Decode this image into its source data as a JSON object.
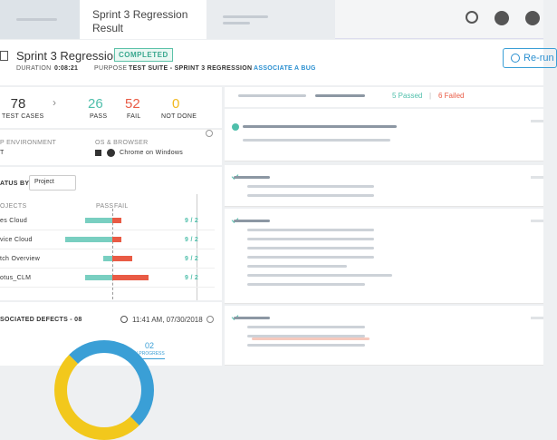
{
  "tab": {
    "title": "Sprint 3 Regression Result"
  },
  "header": {
    "title": "Sprint 3 Regression",
    "status": "COMPLETED",
    "duration_label": "DURATION",
    "duration": "0:08:21",
    "purpose_label": "PURPOSE",
    "purpose": "TEST SUITE - SPRINT 3 REGRESSION",
    "associate": "ASSOCIATE A BUG",
    "button": "Re-run"
  },
  "stats": [
    {
      "value": "78",
      "label": "TEST CASES"
    },
    {
      "value": "26",
      "label": "PASS"
    },
    {
      "value": "52",
      "label": "FAIL"
    },
    {
      "value": "0",
      "label": "NOT DONE"
    }
  ],
  "environment": {
    "env_label": "P ENVIRONMENT",
    "env_value": "T",
    "os_label": "OS & BROWSER",
    "os_value": "Chrome on Windows"
  },
  "status_by": {
    "label": "ATUS BY",
    "select": "Project",
    "col_projects": "OJECTS",
    "col_pass": "PASS",
    "col_fail": "FAIL",
    "rows": [
      {
        "name": "es Cloud",
        "ratio": "9 / 2"
      },
      {
        "name": "vice Cloud",
        "ratio": "9 / 2"
      },
      {
        "name": "tch Overview",
        "ratio": "9 / 2"
      },
      {
        "name": "otus_CLM",
        "ratio": "9 / 2"
      }
    ]
  },
  "defects": {
    "title": "SOCIATED DEFECTS - 08",
    "time": "11:41 AM, 07/30/2018",
    "count": "02",
    "count_label": "IN PROGRESS"
  },
  "results": {
    "passed": "5 Passed",
    "sep": "|",
    "failed": "6 Failed"
  }
}
